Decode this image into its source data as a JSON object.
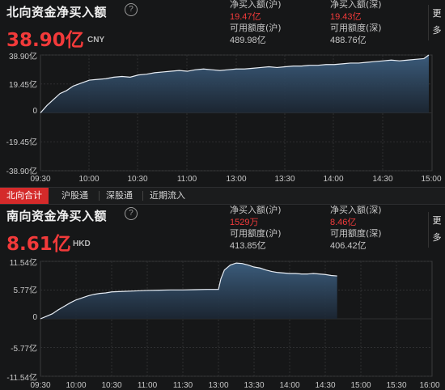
{
  "north": {
    "title": "北向资金净买入额",
    "value": "38.90亿",
    "currency": "CNY",
    "stats": [
      {
        "label": "净买入额(沪)",
        "value": "19.47亿"
      },
      {
        "label": "净买入额(深)",
        "value": "19.43亿"
      },
      {
        "label": "可用额度(沪)",
        "value": "489.98亿"
      },
      {
        "label": "可用额度(深)",
        "value": "488.76亿"
      }
    ],
    "more": "更多",
    "y_ticks": [
      "38.90亿",
      "19.45亿",
      "0",
      "-19.45亿",
      "-38.90亿"
    ],
    "x_ticks": [
      "09:30",
      "10:00",
      "10:30",
      "11:00",
      "13:00",
      "13:30",
      "14:00",
      "14:30",
      "15:00"
    ]
  },
  "tabs": [
    "北向合计",
    "沪股通",
    "深股通",
    "近期流入"
  ],
  "south": {
    "title": "南向资金净买入额",
    "value": "8.61亿",
    "currency": "HKD",
    "stats": [
      {
        "label": "净买入额(沪)",
        "value": "1529万"
      },
      {
        "label": "净买入额(深)",
        "value": "8.46亿"
      },
      {
        "label": "可用额度(沪)",
        "value": "413.85亿"
      },
      {
        "label": "可用额度(深)",
        "value": "406.42亿"
      }
    ],
    "more": "更多",
    "y_ticks": [
      "11.54亿",
      "5.77亿",
      "0",
      "-5.77亿",
      "-11.54亿"
    ],
    "x_ticks": [
      "09:30",
      "10:00",
      "10:30",
      "11:00",
      "11:30",
      "13:00",
      "13:30",
      "14:00",
      "14:30",
      "15:00",
      "15:30",
      "16:00"
    ]
  },
  "chart_data": [
    {
      "type": "area",
      "title": "北向资金净买入额",
      "unit": "亿",
      "ylim": [
        -38.9,
        38.9
      ],
      "x_ticks": [
        "09:30",
        "10:00",
        "10:30",
        "11:00",
        "13:00",
        "13:30",
        "14:00",
        "14:30",
        "15:00"
      ],
      "x_range": [
        0,
        240
      ],
      "points": [
        [
          0,
          0
        ],
        [
          4,
          5
        ],
        [
          8,
          9
        ],
        [
          12,
          13
        ],
        [
          16,
          15
        ],
        [
          20,
          18
        ],
        [
          25,
          20
        ],
        [
          30,
          22
        ],
        [
          35,
          22.5
        ],
        [
          40,
          23
        ],
        [
          45,
          24
        ],
        [
          50,
          24.5
        ],
        [
          55,
          24
        ],
        [
          60,
          25.5
        ],
        [
          65,
          26
        ],
        [
          70,
          27
        ],
        [
          75,
          27.5
        ],
        [
          80,
          28
        ],
        [
          85,
          28.5
        ],
        [
          90,
          28
        ],
        [
          95,
          29
        ],
        [
          100,
          29.5
        ],
        [
          105,
          29
        ],
        [
          110,
          28.5
        ],
        [
          115,
          29
        ],
        [
          120,
          29.5
        ],
        [
          125,
          29.5
        ],
        [
          130,
          30
        ],
        [
          135,
          30.5
        ],
        [
          140,
          31
        ],
        [
          145,
          30.5
        ],
        [
          150,
          31
        ],
        [
          155,
          31.5
        ],
        [
          160,
          31.5
        ],
        [
          165,
          32
        ],
        [
          170,
          32
        ],
        [
          175,
          32.5
        ],
        [
          180,
          32.5
        ],
        [
          185,
          33
        ],
        [
          190,
          33.5
        ],
        [
          195,
          33.5
        ],
        [
          200,
          34
        ],
        [
          205,
          34.5
        ],
        [
          210,
          35
        ],
        [
          215,
          35.5
        ],
        [
          220,
          35
        ],
        [
          225,
          35.5
        ],
        [
          230,
          36
        ],
        [
          235,
          36.5
        ],
        [
          238,
          38.9
        ]
      ],
      "grid": true
    },
    {
      "type": "area",
      "title": "南向资金净买入额",
      "unit": "亿",
      "ylim": [
        -11.54,
        11.54
      ],
      "x_ticks": [
        "09:30",
        "10:00",
        "10:30",
        "11:00",
        "11:30",
        "13:00",
        "13:30",
        "14:00",
        "14:30",
        "15:00",
        "15:30",
        "16:00"
      ],
      "x_range": [
        0,
        330
      ],
      "points": [
        [
          0,
          0
        ],
        [
          5,
          0.5
        ],
        [
          10,
          1
        ],
        [
          15,
          1.8
        ],
        [
          20,
          2.5
        ],
        [
          25,
          3.2
        ],
        [
          30,
          3.8
        ],
        [
          35,
          4.2
        ],
        [
          40,
          4.6
        ],
        [
          45,
          4.9
        ],
        [
          50,
          5.1
        ],
        [
          55,
          5.2
        ],
        [
          60,
          5.4
        ],
        [
          70,
          5.5
        ],
        [
          80,
          5.6
        ],
        [
          90,
          5.7
        ],
        [
          100,
          5.75
        ],
        [
          110,
          5.8
        ],
        [
          120,
          5.8
        ],
        [
          130,
          5.85
        ],
        [
          140,
          5.9
        ],
        [
          150,
          5.9
        ],
        [
          152,
          8
        ],
        [
          155,
          9.8
        ],
        [
          160,
          10.8
        ],
        [
          165,
          11.2
        ],
        [
          170,
          11.1
        ],
        [
          175,
          10.8
        ],
        [
          180,
          10.4
        ],
        [
          185,
          10.2
        ],
        [
          190,
          9.8
        ],
        [
          195,
          9.5
        ],
        [
          200,
          9.3
        ],
        [
          205,
          9.2
        ],
        [
          210,
          9.1
        ],
        [
          215,
          9.1
        ],
        [
          220,
          9.0
        ],
        [
          225,
          9.0
        ],
        [
          230,
          9.1
        ],
        [
          235,
          9.0
        ],
        [
          240,
          8.9
        ],
        [
          245,
          8.7
        ],
        [
          250,
          8.6
        ]
      ],
      "grid": true
    }
  ]
}
